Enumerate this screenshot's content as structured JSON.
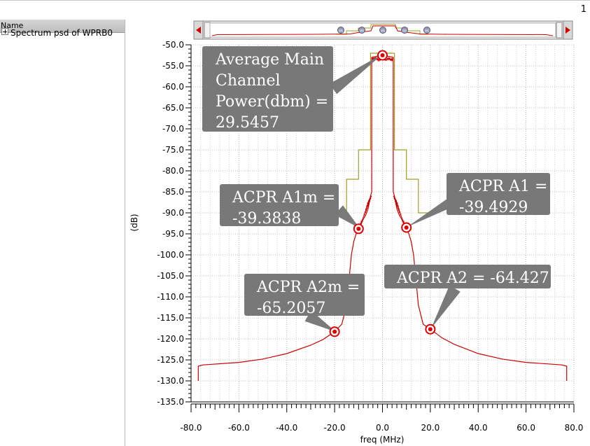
{
  "page_number": "1",
  "sidebar": {
    "header": "Name",
    "tree_item": "Spectrum psd of  WPRB0"
  },
  "chart_data": {
    "type": "line",
    "xlabel": "freq (MHz)",
    "ylabel": "(dB)",
    "xlim": [
      -80,
      80
    ],
    "ylim": [
      -135,
      -50
    ],
    "x_ticks": [
      "-80.0",
      "-60.0",
      "-40.0",
      "-20.0",
      "0.0",
      "20.0",
      "40.0",
      "60.0",
      "80.0"
    ],
    "y_ticks": [
      "-50.0",
      "-55.0",
      "-60.0",
      "-65.0",
      "-70.0",
      "-75.0",
      "-80.0",
      "-85.0",
      "-90.0",
      "-95.0",
      "-100.0",
      "-105.0",
      "-110.0",
      "-115.0",
      "-120.0",
      "-125.0",
      "-130.0",
      "-135.0"
    ],
    "grid": true,
    "series": [
      {
        "color": "#cc0000",
        "x": [
          -77,
          -77,
          -75,
          -60,
          -50,
          -40,
          -30,
          -25,
          -20,
          -17,
          -15,
          -13,
          -12,
          -11,
          -10,
          -9,
          -8,
          -7,
          -6,
          -5,
          -4.5,
          -4.5,
          -3,
          0,
          3,
          4.5,
          4.5,
          5,
          6,
          7,
          8,
          9,
          10,
          11,
          12,
          13,
          15,
          17,
          20,
          25,
          30,
          40,
          50,
          60,
          75,
          77,
          77
        ],
        "y": [
          -130,
          -126.5,
          -126.2,
          -125.6,
          -124.8,
          -123.5,
          -121.5,
          -120.2,
          -118.3,
          -116.5,
          -112,
          -100,
          -96.8,
          -95,
          -93.8,
          -92.8,
          -91.5,
          -90.5,
          -89,
          -86,
          -85,
          -53,
          -52.8,
          -52.5,
          -52.8,
          -53,
          -85,
          -86,
          -89,
          -90.5,
          -91.5,
          -92.8,
          -93.5,
          -95,
          -96.8,
          -100,
          -112,
          -116.5,
          -117.7,
          -119.8,
          -121.3,
          -123.5,
          -124.8,
          -125.6,
          -126.2,
          -126.5,
          -130
        ]
      },
      {
        "color": "#a0a020",
        "x": [
          -15,
          -15,
          -10,
          -10,
          -5,
          -5,
          5,
          5,
          10,
          10,
          15,
          15,
          21
        ],
        "y": [
          -90,
          -82,
          -82,
          -75,
          -75,
          -52,
          -52,
          -75,
          -75,
          -82,
          -82,
          -90,
          -90
        ]
      }
    ],
    "markers": [
      {
        "x": 0,
        "y": -52.5
      },
      {
        "x": -10,
        "y": -93.8
      },
      {
        "x": 10,
        "y": -93.5
      },
      {
        "x": -20,
        "y": -118.3
      },
      {
        "x": 20,
        "y": -117.7
      }
    ],
    "annotations": [
      {
        "lines": [
          "Average Main",
          "Channel",
          "Power(dbm) =",
          "29.5457"
        ]
      },
      {
        "lines": [
          "ACPR A1m =",
          "-39.3838"
        ]
      },
      {
        "lines": [
          "ACPR A1 =",
          "-39.4929"
        ]
      },
      {
        "lines": [
          "ACPR A2m =",
          "-65.2057"
        ]
      },
      {
        "lines": [
          "ACPR A2  = -64.427"
        ]
      }
    ]
  }
}
